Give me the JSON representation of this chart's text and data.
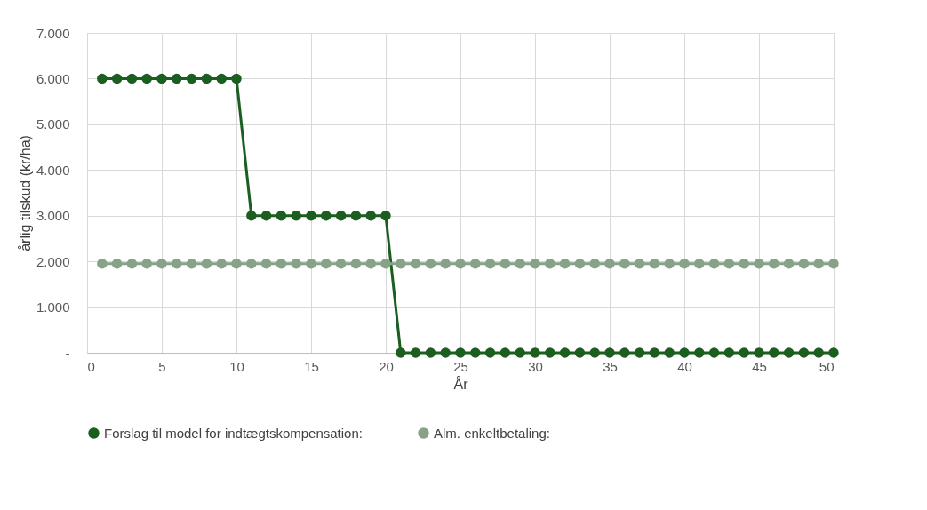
{
  "chart_data": {
    "type": "line",
    "xlabel": "År",
    "ylabel": "årlig tilskud (kr/ha)",
    "x": [
      1,
      2,
      3,
      4,
      5,
      6,
      7,
      8,
      9,
      10,
      11,
      12,
      13,
      14,
      15,
      16,
      17,
      18,
      19,
      20,
      21,
      22,
      23,
      24,
      25,
      26,
      27,
      28,
      29,
      30,
      31,
      32,
      33,
      34,
      35,
      36,
      37,
      38,
      39,
      40,
      41,
      42,
      43,
      44,
      45,
      46,
      47,
      48,
      49,
      50
    ],
    "series": [
      {
        "name": "Forslag til model for indtægtskompensation:",
        "color": "#1b5e20",
        "values": [
          6000,
          6000,
          6000,
          6000,
          6000,
          6000,
          6000,
          6000,
          6000,
          6000,
          3000,
          3000,
          3000,
          3000,
          3000,
          3000,
          3000,
          3000,
          3000,
          3000,
          0,
          0,
          0,
          0,
          0,
          0,
          0,
          0,
          0,
          0,
          0,
          0,
          0,
          0,
          0,
          0,
          0,
          0,
          0,
          0,
          0,
          0,
          0,
          0,
          0,
          0,
          0,
          0,
          0,
          0
        ]
      },
      {
        "name": "Alm. enkeltbetaling:",
        "color": "#87a287",
        "values": [
          1950,
          1950,
          1950,
          1950,
          1950,
          1950,
          1950,
          1950,
          1950,
          1950,
          1950,
          1950,
          1950,
          1950,
          1950,
          1950,
          1950,
          1950,
          1950,
          1950,
          1950,
          1950,
          1950,
          1950,
          1950,
          1950,
          1950,
          1950,
          1950,
          1950,
          1950,
          1950,
          1950,
          1950,
          1950,
          1950,
          1950,
          1950,
          1950,
          1950,
          1950,
          1950,
          1950,
          1950,
          1950,
          1950,
          1950,
          1950,
          1950,
          1950
        ]
      }
    ],
    "xlim": [
      0,
      50
    ],
    "xticks": [
      0,
      5,
      10,
      15,
      20,
      25,
      30,
      35,
      40,
      45,
      50
    ],
    "ylim": [
      0,
      7000
    ],
    "yticks": [
      {
        "value": 0,
        "label": "-"
      },
      {
        "value": 1000,
        "label": "1.000"
      },
      {
        "value": 2000,
        "label": "2.000"
      },
      {
        "value": 3000,
        "label": "3.000"
      },
      {
        "value": 4000,
        "label": "4.000"
      },
      {
        "value": 5000,
        "label": "5.000"
      },
      {
        "value": 6000,
        "label": "6.000"
      },
      {
        "value": 7000,
        "label": "7.000"
      }
    ],
    "grid": true,
    "legend": "bottom",
    "marker": "circle",
    "line_style": "solid"
  }
}
